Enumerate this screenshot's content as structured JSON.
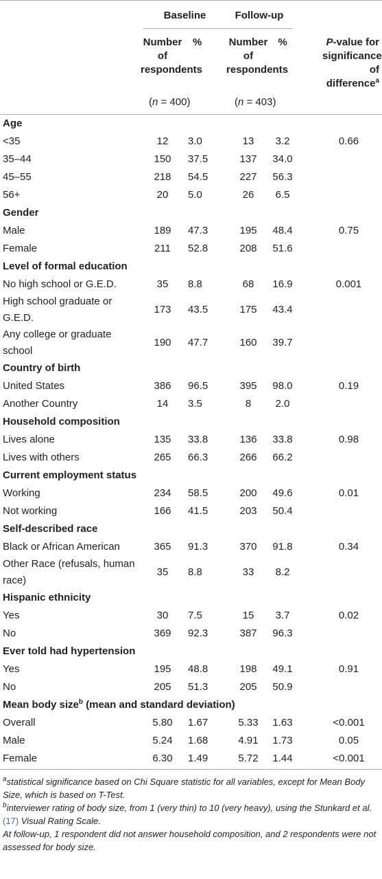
{
  "header": {
    "groups": [
      "Baseline",
      "Follow-up"
    ],
    "columns": [
      "Number of respondents",
      "%",
      "Number of respondents",
      "%"
    ],
    "p_value": {
      "italic": "P",
      "text": "-value for significance of difference",
      "sup": "a"
    },
    "n": [
      {
        "pre": "(",
        "var": "n",
        "post": " = 400)"
      },
      {
        "pre": "(",
        "var": "n",
        "post": " = 403)"
      }
    ]
  },
  "sections": [
    {
      "title": "Age",
      "rows": [
        {
          "label": "<35",
          "cells": [
            "12",
            "3.0",
            "13",
            "3.2"
          ],
          "p_value": "0.66"
        },
        {
          "label": "35–44",
          "cells": [
            "150",
            "37.5",
            "137",
            "34.0"
          ]
        },
        {
          "label": "45–55",
          "cells": [
            "218",
            "54.5",
            "227",
            "56.3"
          ]
        },
        {
          "label": "56+",
          "cells": [
            "20",
            "5.0",
            "26",
            "6.5"
          ]
        }
      ]
    },
    {
      "title": "Gender",
      "rows": [
        {
          "label": "Male",
          "cells": [
            "189",
            "47.3",
            "195",
            "48.4"
          ],
          "p_value": "0.75"
        },
        {
          "label": "Female",
          "cells": [
            "211",
            "52.8",
            "208",
            "51.6"
          ]
        }
      ]
    },
    {
      "title": "Level of formal education",
      "rows": [
        {
          "label": "No high school or G.E.D.",
          "cells": [
            "35",
            "8.8",
            "68",
            "16.9"
          ],
          "p_value": "0.001"
        },
        {
          "label": "High school graduate or G.E.D.",
          "cells": [
            "173",
            "43.5",
            "175",
            "43.4"
          ]
        },
        {
          "label": "Any college or graduate school",
          "cells": [
            "190",
            "47.7",
            "160",
            "39.7"
          ]
        }
      ]
    },
    {
      "title": "Country of birth",
      "rows": [
        {
          "label": "United States",
          "cells": [
            "386",
            "96.5",
            "395",
            "98.0"
          ],
          "p_value": "0.19"
        },
        {
          "label": "Another Country",
          "cells": [
            "14",
            "3.5",
            "8",
            "2.0"
          ]
        }
      ]
    },
    {
      "title": "Household composition",
      "rows": [
        {
          "label": "Lives alone",
          "cells": [
            "135",
            "33.8",
            "136",
            "33.8"
          ],
          "p_value": "0.98"
        },
        {
          "label": "Lives with others",
          "cells": [
            "265",
            "66.3",
            "266",
            "66.2"
          ]
        }
      ]
    },
    {
      "title": "Current employment status",
      "rows": [
        {
          "label": "Working",
          "cells": [
            "234",
            "58.5",
            "200",
            "49.6"
          ],
          "p_value": "0.01"
        },
        {
          "label": "Not working",
          "cells": [
            "166",
            "41.5",
            "203",
            "50.4"
          ]
        }
      ]
    },
    {
      "title": "Self-described race",
      "rows": [
        {
          "label": "Black or African American",
          "cells": [
            "365",
            "91.3",
            "370",
            "91.8"
          ],
          "p_value": "0.34"
        },
        {
          "label": "Other Race (refusals, human race)",
          "cells": [
            "35",
            "8.8",
            "33",
            "8.2"
          ]
        }
      ]
    },
    {
      "title": "Hispanic ethnicity",
      "rows": [
        {
          "label": "Yes",
          "cells": [
            "30",
            "7.5",
            "15",
            "3.7"
          ],
          "p_value": "0.02"
        },
        {
          "label": "No",
          "cells": [
            "369",
            "92.3",
            "387",
            "96.3"
          ]
        }
      ]
    },
    {
      "title": "Ever told had hypertension",
      "rows": [
        {
          "label": "Yes",
          "cells": [
            "195",
            "48.8",
            "198",
            "49.1"
          ],
          "p_value": "0.91"
        },
        {
          "label": "No",
          "cells": [
            "205",
            "51.3",
            "205",
            "50.9"
          ]
        }
      ]
    },
    {
      "title": {
        "text": "Mean body size",
        "sup": "b",
        "rest": " (mean and standard deviation)"
      },
      "rows": [
        {
          "label": "Overall",
          "cells": [
            "5.80",
            "1.67",
            "5.33",
            "1.63"
          ],
          "p_value": "<0.001"
        },
        {
          "label": "Male",
          "cells": [
            "5.24",
            "1.68",
            "4.91",
            "1.73"
          ],
          "p_value": "0.05"
        },
        {
          "label": "Female",
          "cells": [
            "6.30",
            "1.49",
            "5.72",
            "1.44"
          ],
          "p_value": "<0.001"
        }
      ]
    }
  ],
  "footnotes": [
    {
      "sup": "a",
      "text": "statistical significance based on Chi Square statistic for all variables, except for Mean Body Size, which is based on T-Test."
    },
    {
      "sup": "b",
      "text": "interviewer rating of body size, from 1 (very thin) to 10 (very heavy), using the Stunkard et al. ",
      "ref": "(17)",
      "rest": " Visual Rating Scale."
    },
    {
      "text": "At follow-up, 1 respondent did not answer household composition, and 2 respondents were not assessed for body size."
    }
  ]
}
